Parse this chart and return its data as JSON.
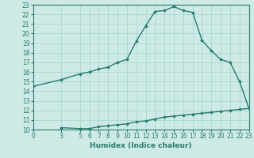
{
  "xlabel": "Humidex (Indice chaleur)",
  "background_color": "#ceeae6",
  "line_color": "#2a7a6e",
  "grid_color": "#a8d8d3",
  "upper_x": [
    0,
    3,
    5,
    6,
    7,
    8,
    9,
    10,
    11,
    12,
    13,
    14,
    15,
    16,
    17,
    18,
    19,
    20,
    21,
    22,
    23
  ],
  "upper_y": [
    14.5,
    15.2,
    15.8,
    16.0,
    16.3,
    16.5,
    17.0,
    17.3,
    19.2,
    20.8,
    22.3,
    22.4,
    22.8,
    22.4,
    22.2,
    19.3,
    18.2,
    17.3,
    17.0,
    15.0,
    12.2
  ],
  "lower_x": [
    3,
    5,
    6,
    7,
    8,
    9,
    10,
    11,
    12,
    13,
    14,
    15,
    16,
    17,
    18,
    19,
    20,
    21,
    22,
    23
  ],
  "lower_y": [
    10.2,
    10.1,
    10.1,
    10.3,
    10.4,
    10.5,
    10.6,
    10.8,
    10.9,
    11.1,
    11.3,
    11.4,
    11.5,
    11.6,
    11.7,
    11.8,
    11.9,
    12.0,
    12.1,
    12.2
  ],
  "ylim": [
    10,
    23
  ],
  "xlim": [
    0,
    23
  ],
  "yticks": [
    10,
    11,
    12,
    13,
    14,
    15,
    16,
    17,
    18,
    19,
    20,
    21,
    22,
    23
  ],
  "xticks": [
    0,
    3,
    5,
    6,
    7,
    8,
    9,
    10,
    11,
    12,
    13,
    14,
    15,
    16,
    17,
    18,
    19,
    20,
    21,
    22,
    23
  ],
  "marker": "D",
  "marker_size": 1.8,
  "line_width": 1.0,
  "tick_fontsize": 5.5,
  "xlabel_fontsize": 6.5
}
